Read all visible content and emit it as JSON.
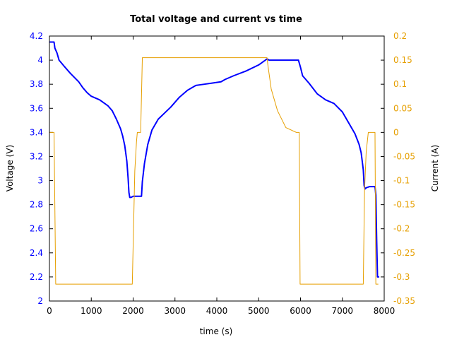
{
  "chart_data": {
    "type": "line",
    "title": "Total voltage and current vs time",
    "xlabel": "time (s)",
    "ylabel_left": "Voltage (V)",
    "ylabel_right": "Current (A)",
    "xlim": [
      0,
      8000
    ],
    "ylim_left": [
      2,
      4.2
    ],
    "ylim_right": [
      -0.35,
      0.2
    ],
    "x_ticks": [
      "0",
      "1000",
      "2000",
      "3000",
      "4000",
      "5000",
      "6000",
      "7000",
      "8000"
    ],
    "y_ticks_left": [
      "2",
      "2.2",
      "2.4",
      "2.6",
      "2.8",
      "3",
      "3.2",
      "3.4",
      "3.6",
      "3.8",
      "4",
      "4.2"
    ],
    "y_ticks_right": [
      "-0.35",
      "-0.3",
      "-0.25",
      "-0.2",
      "-0.15",
      "-0.1",
      "-0.05",
      "0",
      "0.05",
      "0.1",
      "0.15",
      "0.2"
    ],
    "grid": false,
    "colors": {
      "voltage": "#0000ff",
      "current": "#e69f00"
    },
    "series": [
      {
        "axis": "left",
        "color": "#0000ff",
        "points": [
          [
            0,
            4.15
          ],
          [
            110,
            4.15
          ],
          [
            130,
            4.1
          ],
          [
            180,
            4.06
          ],
          [
            230,
            4.0
          ],
          [
            350,
            3.95
          ],
          [
            500,
            3.89
          ],
          [
            700,
            3.82
          ],
          [
            800,
            3.77
          ],
          [
            900,
            3.73
          ],
          [
            1000,
            3.7
          ],
          [
            1200,
            3.67
          ],
          [
            1400,
            3.62
          ],
          [
            1500,
            3.58
          ],
          [
            1600,
            3.51
          ],
          [
            1700,
            3.43
          ],
          [
            1750,
            3.37
          ],
          [
            1800,
            3.29
          ],
          [
            1850,
            3.16
          ],
          [
            1880,
            3.02
          ],
          [
            1900,
            2.9
          ],
          [
            1920,
            2.86
          ],
          [
            1950,
            2.86
          ],
          [
            2000,
            2.87
          ],
          [
            2100,
            2.87
          ],
          [
            2200,
            2.87
          ],
          [
            2220,
            2.99
          ],
          [
            2270,
            3.14
          ],
          [
            2350,
            3.3
          ],
          [
            2450,
            3.42
          ],
          [
            2600,
            3.51
          ],
          [
            2750,
            3.56
          ],
          [
            2900,
            3.61
          ],
          [
            3100,
            3.69
          ],
          [
            3300,
            3.75
          ],
          [
            3500,
            3.79
          ],
          [
            3700,
            3.8
          ],
          [
            3900,
            3.81
          ],
          [
            4100,
            3.82
          ],
          [
            4200,
            3.84
          ],
          [
            4400,
            3.87
          ],
          [
            4700,
            3.91
          ],
          [
            5000,
            3.96
          ],
          [
            5200,
            4.01
          ],
          [
            5250,
            4.0
          ],
          [
            5900,
            4.0
          ],
          [
            5950,
            4.0
          ],
          [
            6000,
            3.94
          ],
          [
            6050,
            3.87
          ],
          [
            6200,
            3.81
          ],
          [
            6400,
            3.72
          ],
          [
            6600,
            3.67
          ],
          [
            6800,
            3.64
          ],
          [
            7000,
            3.57
          ],
          [
            7200,
            3.45
          ],
          [
            7300,
            3.39
          ],
          [
            7400,
            3.3
          ],
          [
            7450,
            3.23
          ],
          [
            7500,
            3.09
          ],
          [
            7520,
            2.96
          ],
          [
            7540,
            2.93
          ],
          [
            7570,
            2.94
          ],
          [
            7650,
            2.95
          ],
          [
            7780,
            2.95
          ],
          [
            7800,
            2.88
          ],
          [
            7820,
            2.51
          ],
          [
            7840,
            2.2
          ],
          [
            7880,
            2.2
          ]
        ]
      },
      {
        "axis": "right",
        "color": "#e69f00",
        "points": [
          [
            0,
            0
          ],
          [
            110,
            0
          ],
          [
            150,
            -0.315
          ],
          [
            1980,
            -0.315
          ],
          [
            2040,
            -0.08
          ],
          [
            2080,
            -0.02
          ],
          [
            2100,
            0
          ],
          [
            2180,
            0
          ],
          [
            2220,
            0.155
          ],
          [
            5200,
            0.155
          ],
          [
            5220,
            0.14
          ],
          [
            5300,
            0.09
          ],
          [
            5450,
            0.045
          ],
          [
            5650,
            0.01
          ],
          [
            5900,
            0
          ],
          [
            5970,
            0
          ],
          [
            5990,
            -0.315
          ],
          [
            7500,
            -0.315
          ],
          [
            7530,
            -0.12
          ],
          [
            7570,
            -0.04
          ],
          [
            7620,
            0
          ],
          [
            7780,
            0
          ],
          [
            7800,
            -0.315
          ],
          [
            7860,
            -0.315
          ]
        ]
      }
    ]
  }
}
